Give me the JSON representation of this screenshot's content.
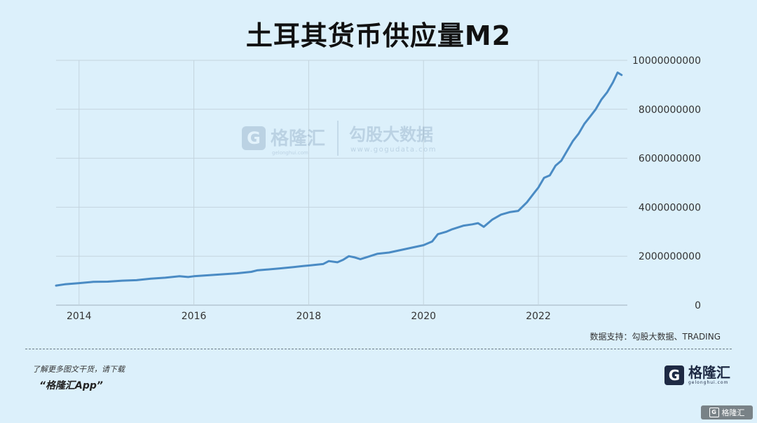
{
  "chart_data": {
    "type": "line",
    "title": "土耳其货币供应量M2",
    "xlabel": "",
    "ylabel": "",
    "x_ticks": [
      "2014",
      "2016",
      "2018",
      "2020",
      "2022"
    ],
    "y_ticks": [
      "0",
      "2000000000",
      "4000000000",
      "6000000000",
      "8000000000",
      "10000000000"
    ],
    "xlim": [
      2013.6,
      2023.55
    ],
    "ylim": [
      0,
      10000000000
    ],
    "grid": true,
    "line_color": "#4a8bc4",
    "series": [
      {
        "x": [
          2013.6,
          2013.75,
          2014.0,
          2014.25,
          2014.5,
          2014.75,
          2015.0,
          2015.25,
          2015.5,
          2015.75,
          2015.9,
          2016.0,
          2016.25,
          2016.5,
          2016.75,
          2017.0,
          2017.1,
          2017.25,
          2017.5,
          2017.75,
          2017.9,
          2018.0,
          2018.25,
          2018.35,
          2018.5,
          2018.6,
          2018.7,
          2018.8,
          2018.9,
          2019.0,
          2019.2,
          2019.4,
          2019.6,
          2019.8,
          2020.0,
          2020.15,
          2020.25,
          2020.4,
          2020.5,
          2020.7,
          2020.85,
          2020.95,
          2021.05,
          2021.2,
          2021.35,
          2021.5,
          2021.65,
          2021.8,
          2021.9,
          2022.0,
          2022.1,
          2022.2,
          2022.3,
          2022.4,
          2022.5,
          2022.6,
          2022.7,
          2022.8,
          2022.9,
          2023.0,
          2023.1,
          2023.2,
          2023.3,
          2023.38,
          2023.45
        ],
        "values": [
          800000000,
          850000000,
          900000000,
          950000000,
          960000000,
          1000000000,
          1020000000,
          1080000000,
          1120000000,
          1180000000,
          1150000000,
          1180000000,
          1220000000,
          1260000000,
          1300000000,
          1360000000,
          1420000000,
          1450000000,
          1500000000,
          1560000000,
          1600000000,
          1620000000,
          1680000000,
          1800000000,
          1750000000,
          1850000000,
          2000000000,
          1950000000,
          1880000000,
          1950000000,
          2100000000,
          2150000000,
          2250000000,
          2350000000,
          2450000000,
          2600000000,
          2900000000,
          3000000000,
          3100000000,
          3250000000,
          3300000000,
          3350000000,
          3200000000,
          3500000000,
          3700000000,
          3800000000,
          3850000000,
          4200000000,
          4500000000,
          4800000000,
          5200000000,
          5300000000,
          5700000000,
          5900000000,
          6300000000,
          6700000000,
          7000000000,
          7400000000,
          7700000000,
          8000000000,
          8400000000,
          8700000000,
          9100000000,
          9500000000,
          9400000000
        ]
      }
    ]
  },
  "watermark": {
    "brand": "格隆汇",
    "brand_sub": "gelonghui.com",
    "partner": "勾股大数据",
    "partner_sub": "www.gogudata.com"
  },
  "footer": {
    "source": "数据支持：勾股大数据、TRADING",
    "promo_line1": "了解更多图文干货，请下载",
    "promo_line2": "“格隆汇App”",
    "brand_icon": "G",
    "brand_name": "格隆汇",
    "brand_sub": "gelonghui.com",
    "corner_label": "格隆汇",
    "corner_icon": "G"
  }
}
